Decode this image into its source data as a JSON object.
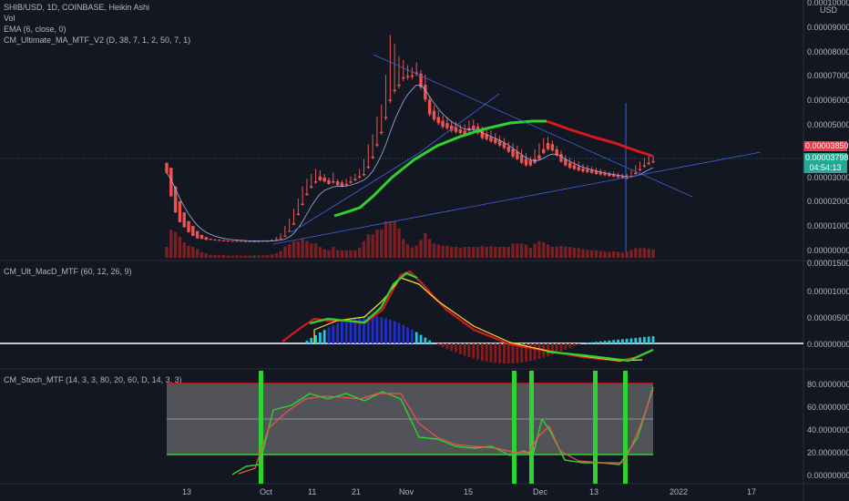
{
  "header": {
    "symbol_line": "SHIB/USD, 1D, COINBASE, Heikin Ashi",
    "indicators": [
      "Vol",
      "EMA (6, close, 0)",
      "CM_Ultimate_MA_MTF_V2 (D, 38, 7, 1, 2, 50, 7, 1)"
    ]
  },
  "price_axis": {
    "labels": [
      "0.00010000",
      "USD",
      "0.00009000",
      "0.00008000",
      "0.00007000",
      "0.00006000",
      "0.00005000",
      "0.00003000",
      "0.00002000",
      "0.00001000",
      "0.00000000"
    ],
    "badge_red": "0.00003850",
    "badge_green": "0.00003798",
    "badge_time": "04:54:13"
  },
  "colors": {
    "background": "#131722",
    "bull": "#26a69a",
    "bear": "#ef5350",
    "ma_red": "#d8181f",
    "ma_green": "#2fd32f",
    "trendline": "#3f62d6",
    "macd_blue": "#1f2ed0",
    "macd_aqua": "#26c6da",
    "stoch_band": "#9e9e9e"
  },
  "macd_panel": {
    "title": "CM_Ult_MacD_MTF (60, 12, 26, 9)",
    "axis_labels": [
      "0.00001500",
      "0.00001000",
      "0.00000500",
      "0.00000000"
    ]
  },
  "stoch_panel": {
    "title": "CM_Stoch_MTF (14, 3, 3, 80, 20, 60, D, 14, 3, 3)",
    "axis_labels": [
      "80.00000000",
      "60.00000000",
      "40.00000000",
      "20.00000000",
      "0.00000000"
    ]
  },
  "time_axis": {
    "labels": [
      "13",
      "Oct",
      "11",
      "21",
      "Nov",
      "15",
      "Dec",
      "13",
      "2022",
      "17"
    ]
  },
  "chart_data": [
    {
      "type": "candlestick",
      "title": "SHIB/USD, 1D, COINBASE, Heikin Ashi",
      "ylabel": "USD",
      "ylim": [
        0,
        0.0001
      ],
      "candles_ohc": [
        [
          3.65e-05,
          3.65e-05,
          3.25e-05
        ],
        [
          3.45e-05,
          3.45e-05,
          2.3e-05
        ],
        [
          2.7e-05,
          2.7e-05,
          1.65e-05
        ],
        [
          2.1e-05,
          2.1e-05,
          1.25e-05
        ],
        [
          1.65e-05,
          1.65e-05,
          1.05e-05
        ],
        [
          1.3e-05,
          1.3e-05,
          8.5e-06
        ],
        [
          1.1e-05,
          1.1e-05,
          7e-06
        ],
        [
          9e-06,
          9e-06,
          6e-06
        ],
        [
          7.4e-06,
          7.4e-06,
          5.8e-06
        ],
        [
          6.5e-06,
          6.5e-06,
          5.4e-06
        ],
        [
          5.9e-06,
          5.9e-06,
          5.4e-06
        ],
        [
          5.5e-06,
          5.7e-06,
          5.2e-06
        ],
        [
          5.4e-06,
          5.5e-06,
          5.1e-06
        ],
        [
          5.2e-06,
          5.5e-06,
          5e-06
        ],
        [
          5.1e-06,
          5.3e-06,
          5e-06
        ],
        [
          5e-06,
          5e-06,
          4.9e-06
        ],
        [
          5e-06,
          5.2e-06,
          4.9e-06
        ],
        [
          5e-06,
          5.1e-06,
          4.9e-06
        ],
        [
          4.9e-06,
          5e-06,
          4.8e-06
        ],
        [
          4.9e-06,
          5e-06,
          4.8e-06
        ],
        [
          4.8e-06,
          5e-06,
          4.8e-06
        ],
        [
          4.9e-06,
          5.1e-06,
          4.8e-06
        ],
        [
          5e-06,
          5.2e-06,
          4.9e-06
        ],
        [
          5e-06,
          5.3e-06,
          4.9e-06
        ],
        [
          5.2e-06,
          5.7e-06,
          5e-06
        ],
        [
          5.6e-06,
          6.5e-06,
          5.4e-06
        ],
        [
          6e-06,
          8e-06,
          5.8e-06
        ],
        [
          7e-06,
          1.1e-05,
          6.8e-06
        ],
        [
          9e-06,
          1.4e-05,
          8.8e-06
        ],
        [
          1.2e-05,
          1.8e-05,
          1.15e-05
        ],
        [
          1.6e-05,
          2.2e-05,
          1.55e-05
        ],
        [
          2e-05,
          2.7e-05,
          1.95e-05
        ],
        [
          2.4e-05,
          3e-05,
          2.35e-05
        ],
        [
          2.7e-05,
          3.2e-05,
          2.65e-05
        ],
        [
          2.9e-05,
          3.4e-05,
          2.85e-05
        ],
        [
          3.1e-05,
          3.35e-05,
          2.95e-05
        ],
        [
          3.05e-05,
          3.2e-05,
          2.9e-05
        ],
        [
          2.95e-05,
          3.05e-05,
          2.8e-05
        ],
        [
          2.9e-05,
          3.25e-05,
          2.85e-05
        ],
        [
          2.9e-05,
          3e-05,
          2.75e-05
        ],
        [
          2.85e-05,
          2.95e-05,
          2.7e-05
        ],
        [
          2.8e-05,
          3e-05,
          2.75e-05
        ],
        [
          2.9e-05,
          3.1e-05,
          2.85e-05
        ],
        [
          3e-05,
          3.2e-05,
          2.95e-05
        ],
        [
          3.1e-05,
          3.4e-05,
          3.05e-05
        ],
        [
          3.2e-05,
          3.8e-05,
          3.15e-05
        ],
        [
          3.5e-05,
          4.4e-05,
          3.45e-05
        ],
        [
          3.9e-05,
          4.8e-05,
          3.85e-05
        ],
        [
          4.4e-05,
          5.5e-05,
          4.35e-05
        ],
        [
          4.9e-05,
          6e-05,
          4.85e-05
        ],
        [
          5.5e-05,
          7.2e-05,
          5.45e-05
        ],
        [
          6.2e-05,
          8.8e-05,
          6.15e-05
        ],
        [
          6.6e-05,
          8.45e-05,
          6.55e-05
        ],
        [
          6.8e-05,
          7.95e-05,
          6.75e-05
        ],
        [
          7.1e-05,
          7.8e-05,
          7.05e-05
        ],
        [
          7.15e-05,
          7.6e-05,
          7.1e-05
        ],
        [
          7.18e-05,
          7.5e-05,
          7.12e-05
        ],
        [
          7.3e-05,
          7.7e-05,
          7.25e-05
        ],
        [
          7.25e-05,
          7.4e-05,
          6.7e-05
        ],
        [
          6.8e-05,
          7.2e-05,
          6.2e-05
        ],
        [
          6.2e-05,
          6.35e-05,
          5.6e-05
        ],
        [
          5.75e-05,
          5.95e-05,
          5.4e-05
        ],
        [
          5.5e-05,
          5.75e-05,
          5.25e-05
        ],
        [
          5.35e-05,
          5.55e-05,
          5.1e-05
        ],
        [
          5.25e-05,
          5.5e-05,
          5.05e-05
        ],
        [
          5.15e-05,
          5.35e-05,
          4.95e-05
        ],
        [
          5.08e-05,
          5.3e-05,
          4.9e-05
        ],
        [
          5e-05,
          5.2e-05,
          4.85e-05
        ],
        [
          4.95e-05,
          5.2e-05,
          4.8e-05
        ],
        [
          5.05e-05,
          5.35e-05,
          4.95e-05
        ],
        [
          5.15e-05,
          5.4e-05,
          5e-05
        ],
        [
          5.1e-05,
          5.25e-05,
          4.85e-05
        ],
        [
          4.95e-05,
          5.1e-05,
          4.65e-05
        ],
        [
          4.8e-05,
          5e-05,
          4.6e-05
        ],
        [
          4.7e-05,
          4.95e-05,
          4.52e-05
        ],
        [
          4.62e-05,
          4.85e-05,
          4.45e-05
        ],
        [
          4.55e-05,
          4.75e-05,
          4.35e-05
        ],
        [
          4.45e-05,
          4.65e-05,
          4.25e-05
        ],
        [
          4.3e-05,
          4.5e-05,
          4.1e-05
        ],
        [
          4.2e-05,
          4.45e-05,
          3.9e-05
        ],
        [
          4.1e-05,
          4.35e-05,
          3.8e-05
        ],
        [
          3.95e-05,
          4.2e-05,
          3.65e-05
        ],
        [
          3.8e-05,
          4.05e-05,
          3.55e-05
        ],
        [
          3.75e-05,
          3.9e-05,
          3.55e-05
        ],
        [
          3.8e-05,
          4.2e-05,
          3.65e-05
        ],
        [
          3.95e-05,
          4.45e-05,
          3.8e-05
        ],
        [
          4.2e-05,
          4.65e-05,
          4.05e-05
        ],
        [
          4.45e-05,
          4.7e-05,
          4.2e-05
        ],
        [
          4.4e-05,
          4.55e-05,
          4.15e-05
        ],
        [
          4.2e-05,
          4.35e-05,
          3.95e-05
        ],
        [
          4e-05,
          4.15e-05,
          3.7e-05
        ],
        [
          3.8e-05,
          3.95e-05,
          3.55e-05
        ],
        [
          3.65e-05,
          3.85e-05,
          3.45e-05
        ],
        [
          3.55e-05,
          3.75e-05,
          3.4e-05
        ],
        [
          3.48e-05,
          3.7e-05,
          3.35e-05
        ],
        [
          3.42e-05,
          3.6e-05,
          3.3e-05
        ],
        [
          3.38e-05,
          3.55e-05,
          3.28e-05
        ],
        [
          3.35e-05,
          3.5e-05,
          3.25e-05
        ],
        [
          3.3e-05,
          3.45e-05,
          3.2e-05
        ],
        [
          3.27e-05,
          3.4e-05,
          3.18e-05
        ],
        [
          3.23e-05,
          3.35e-05,
          3.15e-05
        ],
        [
          3.2e-05,
          3.3e-05,
          3.12e-05
        ],
        [
          3.17e-05,
          3.3e-05,
          3.1e-05
        ],
        [
          3.14e-05,
          3.25e-05,
          3.07e-05
        ],
        [
          3.1e-05,
          3.2e-05,
          3.05e-05
        ],
        [
          3.08e-05,
          3.2e-05,
          3.02e-05
        ],
        [
          3.12e-05,
          3.35e-05,
          3.08e-05
        ],
        [
          3.25e-05,
          3.55e-05,
          3.2e-05
        ],
        [
          3.4e-05,
          3.7e-05,
          3.35e-05
        ],
        [
          3.55e-05,
          3.85e-05,
          3.5e-05
        ],
        [
          3.65e-05,
          3.92e-05,
          3.6e-05
        ],
        [
          3.72e-05,
          3.95e-05,
          3.67e-05
        ]
      ]
    }
  ]
}
